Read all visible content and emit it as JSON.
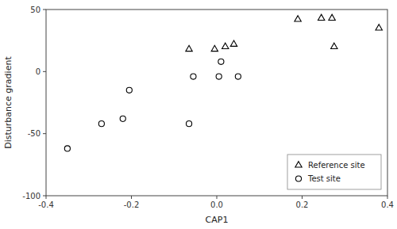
{
  "chart_data": {
    "type": "scatter",
    "x_label": "CAP1",
    "y_label": "Disturbance gradient",
    "xlim": [
      -0.4,
      0.4
    ],
    "ylim": [
      -100,
      50
    ],
    "xticks": [
      -0.4,
      -0.2,
      {
        "value": 0,
        "label": "0.0"
      },
      0.2,
      0.4
    ],
    "yticks": [
      -100,
      -50,
      0,
      50
    ],
    "grid": false,
    "legend": "lower right",
    "series": [
      {
        "name": "Reference site",
        "color": "#000000",
        "marker": "triangle",
        "x": [
          -0.065,
          -0.005,
          0.02,
          0.04,
          0.19,
          0.245,
          0.27,
          0.275,
          0.38
        ],
        "values": [
          18,
          18,
          20,
          22,
          42,
          43,
          43,
          20,
          35
        ]
      },
      {
        "name": "Test site",
        "color": "#000000",
        "marker": "circle",
        "x": [
          -0.35,
          -0.27,
          -0.22,
          -0.205,
          -0.065,
          -0.055,
          0.005,
          0.01,
          0.05
        ],
        "values": [
          -62,
          -42,
          -38,
          -15,
          -42,
          -4,
          -4,
          8,
          -4
        ]
      }
    ]
  }
}
